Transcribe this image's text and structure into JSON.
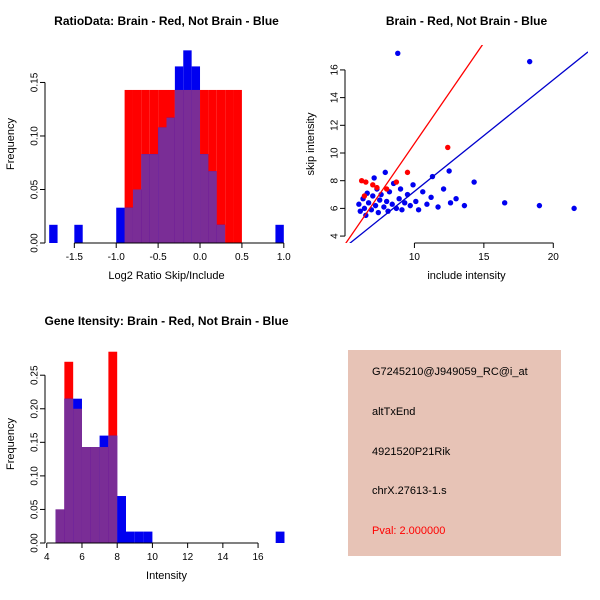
{
  "colors": {
    "red": "#ff0000",
    "blue": "#0000f0",
    "overlap": "#7a2d96",
    "axis": "#000000",
    "red_line": "#ff0000",
    "blue_line": "#0000cd"
  },
  "chart_data": [
    {
      "id": "ratio-hist",
      "type": "bar",
      "subtype": "overlapping-histogram",
      "title": "RatioData: Brain - Red, Not Brain - Blue",
      "xlabel": "Log2 Ratio Skip/Include",
      "ylabel": "Frequency",
      "xlim": [
        -1.85,
        1.05
      ],
      "ylim": [
        0,
        0.185
      ],
      "bin_width": 0.1,
      "grid": false,
      "xticks": [
        {
          "v": -1.5,
          "label": "-1.5"
        },
        {
          "v": -1.0,
          "label": "-1.0"
        },
        {
          "v": -0.5,
          "label": "-0.5"
        },
        {
          "v": 0.0,
          "label": "0.0"
        },
        {
          "v": 0.5,
          "label": "0.5"
        },
        {
          "v": 1.0,
          "label": "1.0"
        }
      ],
      "yticks": [
        {
          "v": 0.0,
          "label": "0.00"
        },
        {
          "v": 0.05,
          "label": "0.05"
        },
        {
          "v": 0.1,
          "label": "0.10"
        },
        {
          "v": 0.15,
          "label": "0.15"
        }
      ],
      "series": [
        {
          "name": "Brain",
          "color_key": "red",
          "bins": [
            {
              "x": -0.9,
              "h": 0.143
            },
            {
              "x": -0.8,
              "h": 0.143
            },
            {
              "x": -0.7,
              "h": 0.143
            },
            {
              "x": -0.6,
              "h": 0.143
            },
            {
              "x": -0.5,
              "h": 0.143
            },
            {
              "x": -0.4,
              "h": 0.143
            },
            {
              "x": -0.3,
              "h": 0.143
            },
            {
              "x": -0.2,
              "h": 0.143
            },
            {
              "x": -0.1,
              "h": 0.143
            },
            {
              "x": 0.0,
              "h": 0.143
            },
            {
              "x": 0.1,
              "h": 0.143
            },
            {
              "x": 0.2,
              "h": 0.143
            },
            {
              "x": 0.3,
              "h": 0.143
            },
            {
              "x": 0.4,
              "h": 0.143
            }
          ]
        },
        {
          "name": "Not Brain",
          "color_key": "blue",
          "bins": [
            {
              "x": -1.8,
              "h": 0.017
            },
            {
              "x": -1.5,
              "h": 0.017
            },
            {
              "x": -1.0,
              "h": 0.033
            },
            {
              "x": -0.9,
              "h": 0.033
            },
            {
              "x": -0.8,
              "h": 0.05
            },
            {
              "x": -0.7,
              "h": 0.083
            },
            {
              "x": -0.6,
              "h": 0.083
            },
            {
              "x": -0.5,
              "h": 0.108
            },
            {
              "x": -0.4,
              "h": 0.117
            },
            {
              "x": -0.3,
              "h": 0.165
            },
            {
              "x": -0.2,
              "h": 0.18
            },
            {
              "x": -0.1,
              "h": 0.165
            },
            {
              "x": 0.0,
              "h": 0.083
            },
            {
              "x": 0.1,
              "h": 0.067
            },
            {
              "x": 0.2,
              "h": 0.017
            },
            {
              "x": 0.9,
              "h": 0.017
            }
          ]
        }
      ]
    },
    {
      "id": "intensity-scatter",
      "type": "scatter",
      "title": "Brain - Red, Not Brain - Blue",
      "xlabel": "include intensity",
      "ylabel": "skip intensity",
      "xlim": [
        5.0,
        22.5
      ],
      "ylim": [
        3.5,
        17.8
      ],
      "grid": false,
      "xticks": [
        {
          "v": 10,
          "label": "10"
        },
        {
          "v": 15,
          "label": "15"
        },
        {
          "v": 20,
          "label": "20"
        }
      ],
      "yticks": [
        {
          "v": 4,
          "label": "4"
        },
        {
          "v": 6,
          "label": "6"
        },
        {
          "v": 8,
          "label": "8"
        },
        {
          "v": 10,
          "label": "10"
        },
        {
          "v": 12,
          "label": "12"
        },
        {
          "v": 14,
          "label": "14"
        },
        {
          "v": 16,
          "label": "16"
        }
      ],
      "series": [
        {
          "name": "Not Brain",
          "color_key": "blue",
          "points": [
            [
              6.0,
              6.3
            ],
            [
              6.1,
              5.8
            ],
            [
              6.3,
              6.7
            ],
            [
              6.4,
              6.0
            ],
            [
              6.5,
              5.5
            ],
            [
              6.6,
              7.1
            ],
            [
              6.7,
              6.4
            ],
            [
              6.9,
              5.9
            ],
            [
              7.0,
              6.9
            ],
            [
              7.1,
              8.2
            ],
            [
              7.2,
              6.2
            ],
            [
              7.3,
              7.4
            ],
            [
              7.4,
              5.7
            ],
            [
              7.5,
              6.6
            ],
            [
              7.6,
              7.0
            ],
            [
              7.8,
              6.1
            ],
            [
              7.9,
              8.6
            ],
            [
              8.0,
              6.5
            ],
            [
              8.1,
              5.8
            ],
            [
              8.2,
              7.2
            ],
            [
              8.4,
              6.3
            ],
            [
              8.5,
              7.8
            ],
            [
              8.7,
              6.0
            ],
            [
              8.8,
              17.2
            ],
            [
              8.9,
              6.7
            ],
            [
              9.0,
              7.4
            ],
            [
              9.1,
              5.9
            ],
            [
              9.3,
              6.4
            ],
            [
              9.5,
              7.0
            ],
            [
              9.7,
              6.2
            ],
            [
              9.9,
              7.7
            ],
            [
              10.1,
              6.5
            ],
            [
              10.3,
              5.9
            ],
            [
              10.6,
              7.2
            ],
            [
              10.9,
              6.3
            ],
            [
              11.2,
              6.8
            ],
            [
              11.3,
              8.3
            ],
            [
              11.7,
              6.1
            ],
            [
              12.1,
              7.4
            ],
            [
              12.5,
              8.7
            ],
            [
              12.6,
              6.4
            ],
            [
              13.0,
              6.7
            ],
            [
              13.6,
              6.2
            ],
            [
              14.3,
              7.9
            ],
            [
              16.5,
              6.4
            ],
            [
              18.3,
              16.6
            ],
            [
              19.0,
              6.2
            ],
            [
              21.5,
              6.0
            ]
          ]
        },
        {
          "name": "Brain",
          "color_key": "red",
          "points": [
            [
              6.2,
              8.0
            ],
            [
              6.5,
              7.9
            ],
            [
              6.4,
              6.9
            ],
            [
              7.0,
              7.7
            ],
            [
              7.3,
              7.5
            ],
            [
              8.0,
              7.4
            ],
            [
              8.7,
              7.9
            ],
            [
              9.5,
              8.6
            ],
            [
              12.4,
              10.4
            ]
          ]
        }
      ],
      "lines": [
        {
          "color_key": "red",
          "from": [
            5.0,
            3.4
          ],
          "to": [
            15.3,
            18.4
          ]
        },
        {
          "color_key": "blue",
          "from": [
            5.0,
            3.2
          ],
          "to": [
            22.5,
            17.3
          ]
        }
      ]
    },
    {
      "id": "gene-hist",
      "type": "bar",
      "subtype": "overlapping-histogram",
      "title": "Gene Itensity: Brain - Red, Not Brain - Blue",
      "xlabel": "Intensity",
      "ylabel": "Frequency",
      "xlim": [
        3.9,
        17.7
      ],
      "ylim": [
        0,
        0.295
      ],
      "bin_width": 0.5,
      "grid": false,
      "xticks": [
        {
          "v": 4,
          "label": "4"
        },
        {
          "v": 6,
          "label": "6"
        },
        {
          "v": 8,
          "label": "8"
        },
        {
          "v": 10,
          "label": "10"
        },
        {
          "v": 12,
          "label": "12"
        },
        {
          "v": 14,
          "label": "14"
        },
        {
          "v": 16,
          "label": "16"
        }
      ],
      "yticks": [
        {
          "v": 0.0,
          "label": "0.00"
        },
        {
          "v": 0.05,
          "label": "0.05"
        },
        {
          "v": 0.1,
          "label": "0.10"
        },
        {
          "v": 0.15,
          "label": "0.15"
        },
        {
          "v": 0.2,
          "label": "0.20"
        },
        {
          "v": 0.25,
          "label": "0.25"
        }
      ],
      "series": [
        {
          "name": "Brain",
          "color_key": "red",
          "bins": [
            {
              "x": 4.5,
              "h": 0.05
            },
            {
              "x": 5.0,
              "h": 0.27
            },
            {
              "x": 5.5,
              "h": 0.2
            },
            {
              "x": 6.0,
              "h": 0.143
            },
            {
              "x": 6.5,
              "h": 0.143
            },
            {
              "x": 7.0,
              "h": 0.143
            },
            {
              "x": 7.5,
              "h": 0.285
            }
          ]
        },
        {
          "name": "Not Brain",
          "color_key": "blue",
          "bins": [
            {
              "x": 4.5,
              "h": 0.05
            },
            {
              "x": 5.0,
              "h": 0.215
            },
            {
              "x": 5.5,
              "h": 0.215
            },
            {
              "x": 6.0,
              "h": 0.143
            },
            {
              "x": 6.5,
              "h": 0.143
            },
            {
              "x": 7.0,
              "h": 0.16
            },
            {
              "x": 7.5,
              "h": 0.16
            },
            {
              "x": 8.0,
              "h": 0.07
            },
            {
              "x": 8.5,
              "h": 0.017
            },
            {
              "x": 9.0,
              "h": 0.017
            },
            {
              "x": 9.5,
              "h": 0.017
            },
            {
              "x": 17.0,
              "h": 0.017
            }
          ]
        }
      ]
    }
  ],
  "info_box": {
    "bg": "#e7c3b6",
    "lines": [
      {
        "text": "G7245210@J949059_RC@i_at",
        "color": "#000000"
      },
      {
        "text": "altTxEnd",
        "color": "#000000"
      },
      {
        "text": "4921520P21Rik",
        "color": "#000000"
      },
      {
        "text": "chrX.27613-1.s",
        "color": "#000000"
      },
      {
        "text": "Pval: 2.000000",
        "color": "#ff0000"
      }
    ]
  }
}
